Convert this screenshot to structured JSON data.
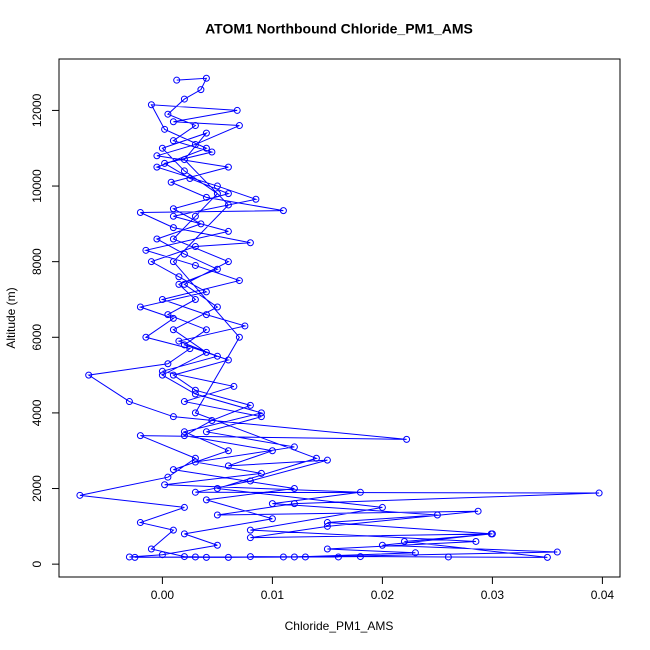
{
  "chart_data": {
    "type": "line",
    "markers": true,
    "title": "ATOM1 Northbound Chloride_PM1_AMS",
    "x_label": "Chloride_PM1_AMS",
    "y_label": "Altitude (m)",
    "color": "#0000ff",
    "xlim": [
      -0.0094,
      0.0416
    ],
    "ylim": [
      -340,
      13360
    ],
    "xticks": [
      {
        "value": 0,
        "label": "0.00"
      },
      0.01,
      0.02,
      0.03,
      0.04
    ],
    "yticks": [
      0,
      2000,
      4000,
      6000,
      8000,
      10000,
      12000
    ],
    "x": [
      0.0013,
      0.004,
      0.0035,
      0.002,
      0.0005,
      0.003,
      0.001,
      0.0045,
      0.0002,
      0.0025,
      0.006,
      0.001,
      0.0035,
      -0.0005,
      0.002,
      0.005,
      0.0015,
      0.003,
      0.0005,
      0.004,
      0.002,
      0.006,
      0.001,
      0.003,
      0.008,
      0.0045,
      0.002,
      0.01,
      0.006,
      0.015,
      0.008,
      0.003,
      0.0397,
      0.012,
      0.005,
      0.0287,
      0.015,
      0.008,
      0.0299,
      0.02,
      0.0359,
      0.013,
      0.006,
      0.002,
      -0.001,
      0.001,
      -0.002,
      0.002,
      -0.0075,
      0.0005,
      0.003,
      -0.002,
      0.0222,
      0.001,
      -0.003,
      -0.0067,
      0.0005,
      0.0025,
      -0.0015,
      0.001,
      -0.002,
      0.004,
      0.0015,
      -0.001,
      0.003,
      0.008,
      0.001,
      -0.002,
      0.011,
      0.004,
      0.0008,
      0.006,
      -0.0005,
      0.003,
      0.007,
      0.001,
      0.0068,
      -0.001,
      0.0002,
      0.004,
      -0.0005,
      0.005,
      0.0085,
      0.001,
      0.006,
      -0.0015,
      0.003,
      0.007,
      0.0,
      0.004,
      0.0075,
      0.0015,
      0.005,
      0.0,
      0.0065,
      0.002,
      0.009,
      0.004,
      0.012,
      0.003,
      0.009,
      0.0002,
      0.018,
      0.01,
      0.025,
      0.015,
      0.03,
      0.022,
      0.035,
      0.026,
      0.018,
      0.011,
      0.004,
      -0.003,
      0.0,
      0.005,
      0.002,
      0.01,
      0.004,
      0.012,
      0.001,
      0.006,
      0.002,
      0.009,
      0.003,
      0.0,
      0.004,
      0.001,
      0.005,
      0.002,
      0.006,
      0.001,
      0.003,
      0.005,
      0.002,
      0.0,
      0.004,
      0.002,
      0.006,
      0.001,
      0.007,
      0.003,
      0.014,
      0.005,
      0.02,
      0.008,
      0.0285,
      0.015,
      0.023,
      0.012,
      0.008,
      0.016,
      0.003,
      -0.0025
    ],
    "values": [
      12800,
      12850,
      12550,
      12300,
      11900,
      11600,
      11200,
      10900,
      10600,
      10200,
      9800,
      9400,
      9000,
      8600,
      8200,
      7800,
      7400,
      7000,
      6600,
      6200,
      5800,
      5400,
      5000,
      4600,
      4200,
      3800,
      3400,
      3000,
      2600,
      2750,
      2200,
      1900,
      1880,
      1600,
      1300,
      1400,
      1000,
      700,
      800,
      500,
      320,
      190,
      180,
      200,
      400,
      900,
      1100,
      1500,
      1820,
      2300,
      2800,
      3400,
      3300,
      3900,
      4300,
      5000,
      5300,
      5700,
      6000,
      6500,
      6800,
      7200,
      7600,
      8000,
      8400,
      8500,
      8900,
      9300,
      9350,
      9700,
      10100,
      10500,
      10800,
      11100,
      11600,
      11700,
      12000,
      12150,
      11500,
      11000,
      10500,
      10000,
      9650,
      9200,
      8800,
      8300,
      7900,
      7500,
      7000,
      6600,
      6300,
      5900,
      5500,
      5100,
      4700,
      4300,
      3900,
      3500,
      3100,
      2700,
      2400,
      2100,
      1900,
      1600,
      1300,
      1100,
      800,
      600,
      180,
      190,
      200,
      190,
      180,
      190,
      250,
      500,
      800,
      1200,
      1700,
      2000,
      2500,
      3000,
      3500,
      4000,
      4500,
      5000,
      5600,
      6200,
      6800,
      7400,
      8000,
      8600,
      9200,
      9800,
      10400,
      11000,
      11400,
      10700,
      9500,
      8000,
      6000,
      4000,
      2800,
      2000,
      1500,
      900,
      600,
      400,
      300,
      190,
      200,
      190,
      190,
      180
    ]
  }
}
